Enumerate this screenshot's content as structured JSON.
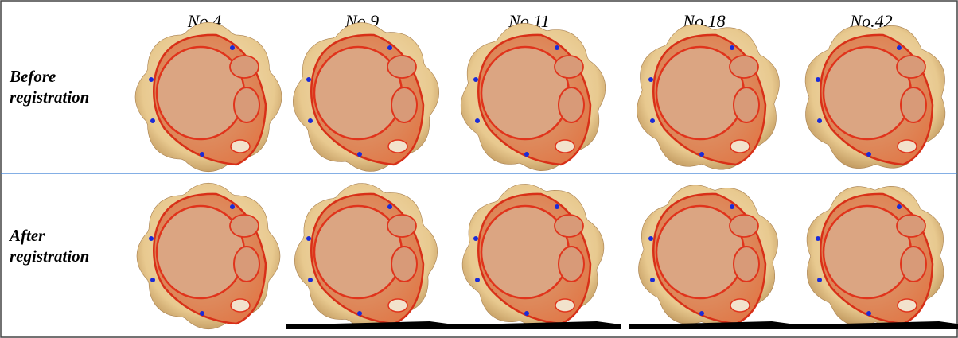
{
  "columns": [
    "No.4",
    "No.9",
    "No.11",
    "No.18",
    "No.42"
  ],
  "rows": [
    {
      "label": [
        "Before",
        "registration"
      ]
    },
    {
      "label": [
        "After",
        "registration"
      ]
    }
  ]
}
